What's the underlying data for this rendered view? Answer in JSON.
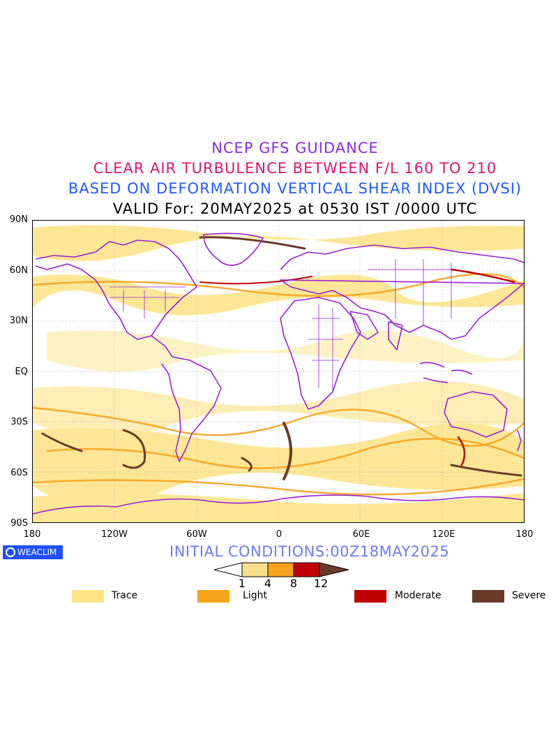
{
  "titles": {
    "line1": "NCEP GFS GUIDANCE",
    "line2": "CLEAR AIR TURBULENCE BETWEEN F/L 160 TO 210",
    "line3": "BASED ON DEFORMATION VERTICAL SHEAR INDEX (DVSI)",
    "line4": "VALID For: 20MAY2025 at 0530 IST /0000 UTC"
  },
  "axes": {
    "lat_labels": [
      "90N",
      "60N",
      "30N",
      "EQ",
      "30S",
      "60S",
      "90S"
    ],
    "lon_labels": [
      "180",
      "120W",
      "60W",
      "0",
      "60E",
      "120E",
      "180"
    ]
  },
  "logo_text": "WEACLIM",
  "initial_conditions": "INITIAL CONDITIONS:00Z18MAY2025",
  "colorbar": {
    "ticks": [
      "1",
      "4",
      "8",
      "12"
    ],
    "colors": [
      "#ffffff",
      "#f7e08a",
      "#f5a21b",
      "#c00000",
      "#6b3a2a"
    ]
  },
  "legend": [
    {
      "label": "Trace",
      "color": "#fde384"
    },
    {
      "label": "Light",
      "color": "#f7a21b"
    },
    {
      "label": "Moderate",
      "color": "#c00000"
    },
    {
      "label": "Severe",
      "color": "#6b3a2a"
    }
  ],
  "colors": {
    "coastline": "#9b1fd6",
    "title1": "#8a2be2",
    "title2": "#e0146e",
    "title3": "#1e5bff"
  }
}
